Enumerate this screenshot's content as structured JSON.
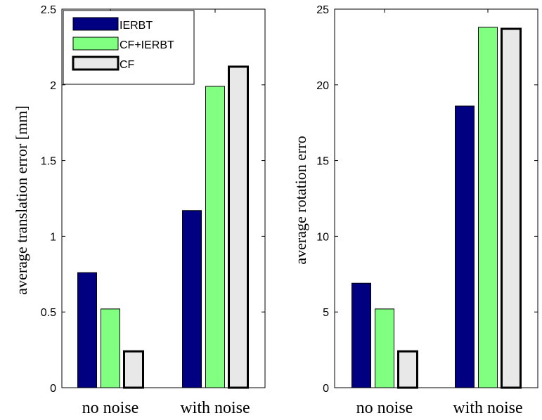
{
  "chart_data": [
    {
      "type": "bar",
      "categories": [
        "no noise",
        "with noise"
      ],
      "ylabel": "average translation error [mm]",
      "ylim": [
        0,
        2.5
      ],
      "yticks": [
        "0",
        "0.5",
        "1",
        "1.5",
        "2",
        "2.5"
      ],
      "legend": "top-left",
      "series": [
        {
          "name": "IERBT",
          "color": "#000080",
          "values": [
            0.76,
            1.17
          ]
        },
        {
          "name": "CF+IERBT",
          "color": "#80ff80",
          "values": [
            0.52,
            1.99
          ]
        },
        {
          "name": "CF",
          "color": "#e8e8e8",
          "values": [
            0.24,
            2.12
          ]
        }
      ]
    },
    {
      "type": "bar",
      "categories": [
        "no noise",
        "with noise"
      ],
      "ylabel": "average rotation erro",
      "ylim": [
        0,
        25
      ],
      "yticks": [
        "0",
        "5",
        "10",
        "15",
        "20",
        "25"
      ],
      "series": [
        {
          "color": "#000080",
          "values": [
            6.9,
            18.6
          ]
        },
        {
          "color": "#80ff80",
          "values": [
            5.2,
            23.8
          ]
        },
        {
          "color": "#e8e8e8",
          "values": [
            2.4,
            23.7
          ]
        }
      ]
    }
  ]
}
